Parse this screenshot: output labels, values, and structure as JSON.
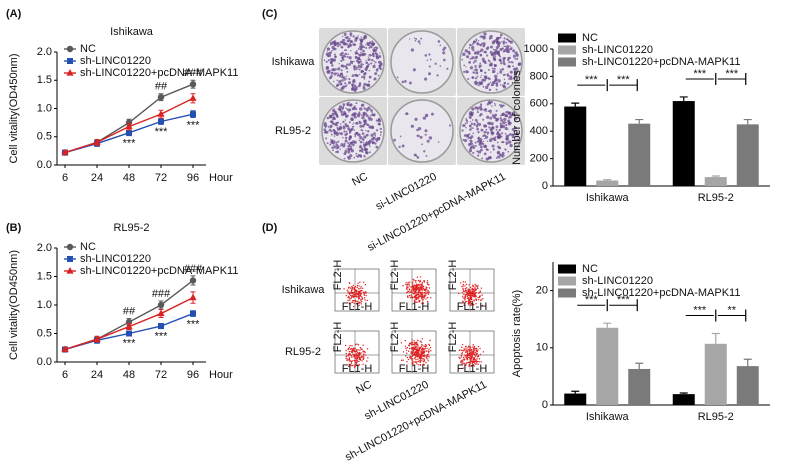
{
  "chart_data": [
    {
      "panel_label": "(A)",
      "type": "line",
      "title": "Ishikawa",
      "x_label": "Hour",
      "y_label": "Cell vitality(OD450nm)",
      "categories": [
        "6",
        "24",
        "48",
        "72",
        "96"
      ],
      "ylim": [
        0,
        2
      ],
      "yticks": [
        {
          "value": 0,
          "label": "0.0"
        },
        {
          "value": 0.5,
          "label": "0.5"
        },
        {
          "value": 1,
          "label": "1.0"
        },
        {
          "value": 1.5,
          "label": "1.5"
        },
        {
          "value": 2,
          "label": "2.0"
        }
      ],
      "legend": "upper left",
      "series": [
        {
          "name": "NC",
          "color": "#595959",
          "marker": "circle",
          "values": [
            0.22,
            0.4,
            0.75,
            1.2,
            1.43
          ],
          "errors": [
            0.03,
            0.05,
            0.06,
            0.06,
            0.07
          ],
          "annotations": [
            null,
            null,
            null,
            "##",
            "###"
          ],
          "annotation_position": "above"
        },
        {
          "name": "sh-LINC01220",
          "color": "#2450b4",
          "marker": "square",
          "values": [
            0.22,
            0.38,
            0.57,
            0.77,
            0.9
          ],
          "errors": [
            0.03,
            0.05,
            0.05,
            0.05,
            0.06
          ],
          "annotations": [
            null,
            null,
            "***",
            "***",
            "***"
          ],
          "annotation_position": "below"
        },
        {
          "name": "sh-LINC01220+pcDNA-MAPK11",
          "color": "#d92323",
          "marker": "triangle",
          "values": [
            0.22,
            0.4,
            0.68,
            0.9,
            1.18
          ],
          "errors": [
            0.03,
            0.05,
            0.06,
            0.07,
            0.08
          ]
        }
      ]
    },
    {
      "panel_label": "(B)",
      "type": "line",
      "title": "RL95-2",
      "x_label": "Hour",
      "y_label": "Cell vitality(OD450nm)",
      "categories": [
        "6",
        "24",
        "48",
        "72",
        "96"
      ],
      "ylim": [
        0,
        2
      ],
      "yticks": [
        {
          "value": 0,
          "label": "0.0"
        },
        {
          "value": 0.5,
          "label": "0.5"
        },
        {
          "value": 1,
          "label": "1.0"
        },
        {
          "value": 1.5,
          "label": "1.5"
        },
        {
          "value": 2,
          "label": "2.0"
        }
      ],
      "legend": "upper left",
      "series": [
        {
          "name": "NC",
          "color": "#595959",
          "marker": "circle",
          "values": [
            0.22,
            0.4,
            0.7,
            1.0,
            1.43
          ],
          "errors": [
            0.03,
            0.05,
            0.06,
            0.07,
            0.08
          ],
          "annotations": [
            null,
            null,
            "##",
            "###",
            "###"
          ],
          "annotation_position": "above"
        },
        {
          "name": "sh-LINC01220",
          "color": "#2450b4",
          "marker": "square",
          "values": [
            0.22,
            0.38,
            0.5,
            0.63,
            0.85
          ],
          "errors": [
            0.03,
            0.05,
            0.04,
            0.04,
            0.05
          ],
          "annotations": [
            null,
            null,
            "***",
            "***",
            "***"
          ],
          "annotation_position": "below"
        },
        {
          "name": "sh-LINC01220+pcDNA-MAPK11",
          "color": "#d92323",
          "marker": "triangle",
          "values": [
            0.22,
            0.4,
            0.62,
            0.85,
            1.13
          ],
          "errors": [
            0.03,
            0.05,
            0.05,
            0.07,
            0.1
          ]
        }
      ]
    },
    {
      "type": "bar",
      "y_label": "Number of colonies",
      "categories": [
        "Ishikawa",
        "RL95-2"
      ],
      "ylim": [
        0,
        1000
      ],
      "yticks": [
        0,
        200,
        400,
        600,
        800,
        1000
      ],
      "legend": "upper left",
      "series": [
        {
          "name": "NC",
          "color": "#000000",
          "values": [
            580,
            620
          ],
          "errors": [
            25,
            30
          ]
        },
        {
          "name": "sh-LINC01220",
          "color": "#a6a6a6",
          "values": [
            40,
            65
          ],
          "errors": [
            6,
            8
          ]
        },
        {
          "name": "sh-LINC01220+pcDNA-MAPK11",
          "color": "#7a7a7a",
          "values": [
            455,
            450
          ],
          "errors": [
            30,
            35
          ]
        }
      ],
      "significance": [
        [
          "***",
          "***"
        ],
        [
          "***",
          "***"
        ]
      ]
    },
    {
      "type": "bar",
      "y_label": "Apoptosis rate(%)",
      "categories": [
        "Ishikawa",
        "RL95-2"
      ],
      "ylim": [
        0,
        25
      ],
      "yticks": [
        0,
        10,
        20
      ],
      "legend": "upper left",
      "series": [
        {
          "name": "NC",
          "color": "#000000",
          "values": [
            2.0,
            1.9
          ],
          "errors": [
            0.4,
            0.2
          ]
        },
        {
          "name": "sh-LINC01220",
          "color": "#a6a6a6",
          "values": [
            13.5,
            10.7
          ],
          "errors": [
            0.8,
            1.8
          ]
        },
        {
          "name": "sh-LINC01220+pcDNA-MAPK11",
          "color": "#7a7a7a",
          "values": [
            6.3,
            6.8
          ],
          "errors": [
            1.0,
            1.2
          ]
        }
      ],
      "significance": [
        [
          "***",
          "***"
        ],
        [
          "***",
          "**"
        ]
      ]
    }
  ],
  "image_panels": [
    {
      "panel_label": "(C)",
      "kind": "colony",
      "row_labels": [
        "Ishikawa",
        "RL95-2"
      ],
      "column_labels": [
        "NC",
        "si-LINC01220",
        "si-LINC01220+pcDNA-MAPK11"
      ]
    },
    {
      "panel_label": "(D)",
      "kind": "flow",
      "row_labels": [
        "Ishikawa",
        "RL95-2"
      ],
      "column_labels": [
        "NC",
        "sh-LINC01220",
        "sh-LINC01220+pcDNA-MAPK11"
      ],
      "axis_labels": [
        "FL1-H",
        "FL2-H"
      ]
    }
  ]
}
